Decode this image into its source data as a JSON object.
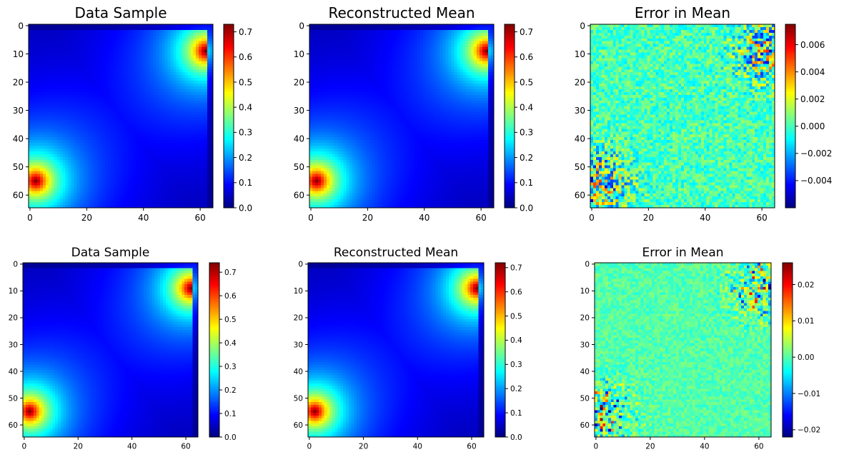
{
  "chart_data": [
    {
      "type": "heatmap",
      "row": 0,
      "col": 0,
      "title": "Data Sample",
      "field": "sample",
      "grid_size": 65,
      "vmin": 0.0,
      "vmax": 0.73,
      "colormap": "jet",
      "xticks": [
        0,
        20,
        40,
        60
      ],
      "yticks": [
        0,
        10,
        20,
        30,
        40,
        50,
        60
      ],
      "colorbar_ticks": [
        0.0,
        0.1,
        0.2,
        0.3,
        0.4,
        0.5,
        0.6,
        0.7
      ],
      "colorbar_labels": [
        "0.0",
        "0.1",
        "0.2",
        "0.3",
        "0.4",
        "0.5",
        "0.6",
        "0.7"
      ],
      "peaks": [
        {
          "x": 62,
          "y": 9,
          "value": 0.73
        },
        {
          "x": 2,
          "y": 55,
          "value": 0.73
        }
      ]
    },
    {
      "type": "heatmap",
      "row": 0,
      "col": 1,
      "title": "Reconstructed Mean",
      "field": "sample",
      "grid_size": 65,
      "vmin": 0.0,
      "vmax": 0.73,
      "colormap": "jet",
      "xticks": [
        0,
        20,
        40,
        60
      ],
      "yticks": [
        0,
        10,
        20,
        30,
        40,
        50,
        60
      ],
      "colorbar_ticks": [
        0.0,
        0.1,
        0.2,
        0.3,
        0.4,
        0.5,
        0.6,
        0.7
      ],
      "colorbar_labels": [
        "0.0",
        "0.1",
        "0.2",
        "0.3",
        "0.4",
        "0.5",
        "0.6",
        "0.7"
      ],
      "peaks": [
        {
          "x": 62,
          "y": 9,
          "value": 0.73
        },
        {
          "x": 2,
          "y": 55,
          "value": 0.73
        }
      ]
    },
    {
      "type": "heatmap",
      "row": 0,
      "col": 2,
      "title": "Error in Mean",
      "field": "error",
      "grid_size": 65,
      "vmin": -0.006,
      "vmax": 0.0075,
      "colormap": "jet",
      "xticks": [
        0,
        20,
        40,
        60
      ],
      "yticks": [
        0,
        10,
        20,
        30,
        40,
        50,
        60
      ],
      "colorbar_ticks": [
        -0.004,
        -0.002,
        0.0,
        0.002,
        0.004,
        0.006
      ],
      "colorbar_labels": [
        "−0.004",
        "−0.002",
        "0.000",
        "0.002",
        "0.004",
        "0.006"
      ]
    },
    {
      "type": "heatmap",
      "row": 1,
      "col": 0,
      "title": "Data Sample",
      "field": "sample",
      "grid_size": 65,
      "vmin": 0.0,
      "vmax": 0.74,
      "colormap": "jet",
      "xticks": [
        0,
        20,
        40,
        60
      ],
      "yticks": [
        0,
        10,
        20,
        30,
        40,
        50,
        60
      ],
      "colorbar_ticks": [
        0.0,
        0.1,
        0.2,
        0.3,
        0.4,
        0.5,
        0.6,
        0.7
      ],
      "colorbar_labels": [
        "0.0",
        "0.1",
        "0.2",
        "0.3",
        "0.4",
        "0.5",
        "0.6",
        "0.7"
      ],
      "peaks": [
        {
          "x": 62,
          "y": 9,
          "value": 0.74
        },
        {
          "x": 2,
          "y": 55,
          "value": 0.74
        }
      ]
    },
    {
      "type": "heatmap",
      "row": 1,
      "col": 1,
      "title": "Reconstructed Mean",
      "field": "sample",
      "grid_size": 65,
      "vmin": 0.0,
      "vmax": 0.72,
      "colormap": "jet",
      "xticks": [
        0,
        20,
        40,
        60
      ],
      "yticks": [
        0,
        10,
        20,
        30,
        40,
        50,
        60
      ],
      "colorbar_ticks": [
        0.0,
        0.1,
        0.2,
        0.3,
        0.4,
        0.5,
        0.6,
        0.7
      ],
      "colorbar_labels": [
        "0.0",
        "0.1",
        "0.2",
        "0.3",
        "0.4",
        "0.5",
        "0.6",
        "0.7"
      ],
      "peaks": [
        {
          "x": 62,
          "y": 9,
          "value": 0.72
        },
        {
          "x": 2,
          "y": 55,
          "value": 0.72
        }
      ]
    },
    {
      "type": "heatmap",
      "row": 1,
      "col": 2,
      "title": "Error in Mean",
      "field": "error",
      "grid_size": 65,
      "vmin": -0.022,
      "vmax": 0.026,
      "colormap": "jet",
      "xticks": [
        0,
        20,
        40,
        60
      ],
      "yticks": [
        0,
        10,
        20,
        30,
        40,
        50,
        60
      ],
      "colorbar_ticks": [
        -0.02,
        -0.01,
        0.0,
        0.01,
        0.02
      ],
      "colorbar_labels": [
        "−0.02",
        "−0.01",
        "0.00",
        "0.01",
        "0.02"
      ]
    }
  ]
}
